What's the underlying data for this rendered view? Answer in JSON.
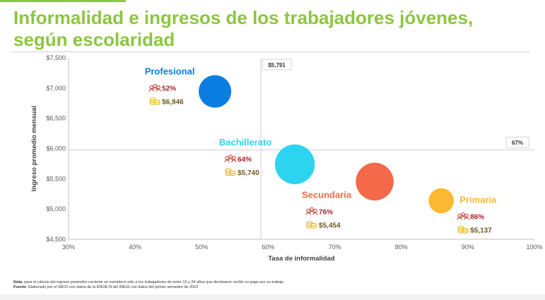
{
  "title": "Informalidad e ingresos de los trabajadores jóvenes, según escolaridad",
  "notes": {
    "nota_label": "Nota",
    "nota_text": ": para el cálculo del ingreso promedio corriente se consideró sólo a los trabajadores de entre 15 y 24 años que declararon recibir un pago por su trabajo",
    "fuente_label": "Fuente",
    "fuente_text": ": Elaborado por el IMCO con datos de la ENOE-N del INEGI con datos del primer semestre de 2022"
  },
  "chart_data": {
    "type": "scatter",
    "xlabel": "Tasa de informalidad",
    "ylabel": "Ingreso promedio mensual",
    "xlim": [
      30,
      100
    ],
    "ylim": [
      4500,
      7500
    ],
    "xticks": [
      30,
      40,
      50,
      60,
      70,
      80,
      90,
      100
    ],
    "xtick_labels": [
      "30%",
      "40%",
      "50%",
      "60%",
      "70%",
      "80%",
      "90%",
      "100%"
    ],
    "yticks": [
      4500,
      5000,
      5500,
      6000,
      6500,
      7000,
      7500
    ],
    "ytick_labels": [
      "$4,500",
      "$5,000",
      "$5,500",
      "$6,000",
      "$6,500",
      "$7,000",
      "$7,500"
    ],
    "grid": false,
    "reference_lines": [
      {
        "axis": "x",
        "value": 58.9,
        "label": "$5,791"
      },
      {
        "axis": "y",
        "value": 5980,
        "label": "67%"
      }
    ],
    "points": [
      {
        "name": "Profesional",
        "x": 52,
        "y": 6946,
        "size": 1.0,
        "pct_label": "52%",
        "income_label": "$6,946",
        "color": "#0a7ee0"
      },
      {
        "name": "Bachillerato",
        "x": 64,
        "y": 5740,
        "size": 1.5,
        "pct_label": "64%",
        "income_label": "$5,740",
        "color": "#2dd4ef"
      },
      {
        "name": "Secundaria",
        "x": 76,
        "y": 5454,
        "size": 1.35,
        "pct_label": "76%",
        "income_label": "$5,454",
        "color": "#f4694a"
      },
      {
        "name": "Primaria",
        "x": 86,
        "y": 5137,
        "size": 0.6,
        "pct_label": "86%",
        "income_label": "$5,137",
        "color": "#fbb832"
      }
    ],
    "colors": {
      "pct_text": "#b31c2a",
      "income_text": "#6b5a1e",
      "icon_people": "#c0392b",
      "icon_coins": "#e0b21c"
    }
  }
}
